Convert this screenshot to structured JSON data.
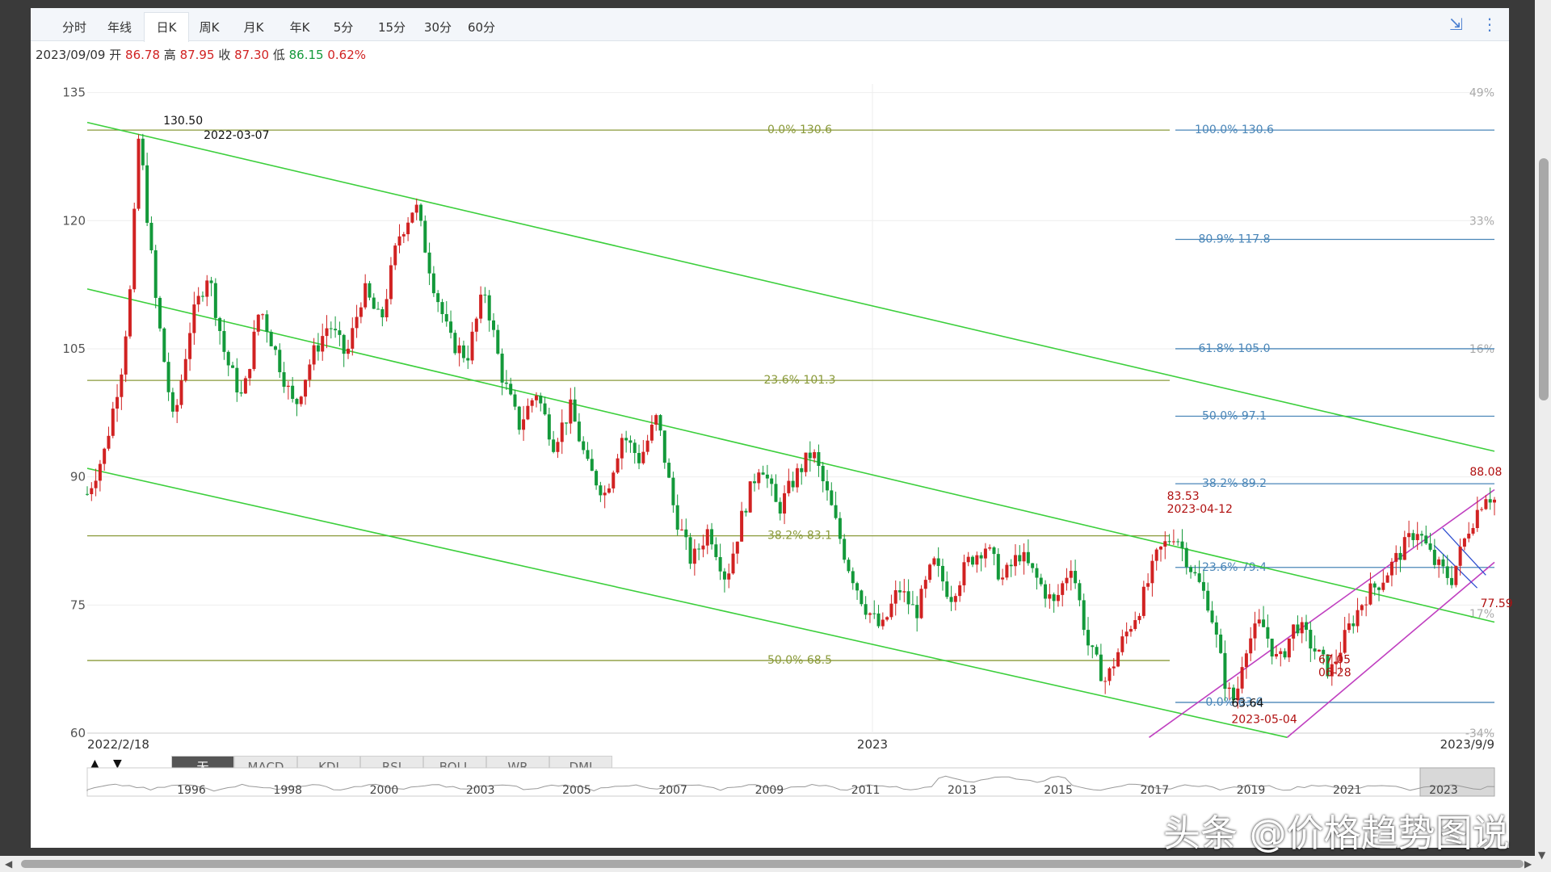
{
  "tabs": [
    {
      "label": "分时"
    },
    {
      "label": "年线"
    },
    {
      "label": "日K",
      "active": true
    },
    {
      "label": "周K"
    },
    {
      "label": "月K"
    },
    {
      "label": "年K"
    },
    {
      "label": "5分"
    },
    {
      "label": "15分"
    },
    {
      "label": "30分"
    },
    {
      "label": "60分"
    }
  ],
  "tools": {
    "collapse_icon": "compress-icon",
    "more_icon": "more-vertical-icon"
  },
  "info": {
    "date": "2023/09/09",
    "open_label": "开",
    "open": "86.78",
    "high_label": "高",
    "high": "87.95",
    "close_label": "收",
    "close": "87.30",
    "low_label": "低",
    "low": "86.15",
    "change": "0.62%"
  },
  "indicators": [
    {
      "label": "无",
      "active": true
    },
    {
      "label": "MACD"
    },
    {
      "label": "KDJ"
    },
    {
      "label": "RSI"
    },
    {
      "label": "BOLL"
    },
    {
      "label": "WR"
    },
    {
      "label": "DMI"
    }
  ],
  "nav": {
    "up": "▲",
    "down": "▼"
  },
  "watermark": "头条 @价格趋势图说",
  "chart_data": {
    "type": "candlestick",
    "x_start": "2022/2/18",
    "x_mid": "2023",
    "x_end": "2023/9/9",
    "y_ticks": [
      135,
      120,
      105,
      90,
      75,
      60
    ],
    "ylim": [
      60,
      136
    ],
    "right_pct_ticks": [
      {
        "label": "49%",
        "y": 135
      },
      {
        "label": "33%",
        "y": 120
      },
      {
        "label": "16%",
        "y": 105
      },
      {
        "label": "17%",
        "y": 74
      },
      {
        "label": "-34%",
        "y": 60
      }
    ],
    "price_path": [
      [
        0,
        88
      ],
      [
        2,
        93
      ],
      [
        4,
        103
      ],
      [
        5,
        112
      ],
      [
        6,
        130.5
      ],
      [
        7,
        120
      ],
      [
        8,
        110
      ],
      [
        10,
        96
      ],
      [
        12,
        108
      ],
      [
        14,
        114
      ],
      [
        16,
        104
      ],
      [
        18,
        99
      ],
      [
        20,
        110
      ],
      [
        22,
        104
      ],
      [
        24,
        98
      ],
      [
        26,
        104
      ],
      [
        28,
        108
      ],
      [
        30,
        104
      ],
      [
        32,
        112
      ],
      [
        34,
        108
      ],
      [
        36,
        118
      ],
      [
        38,
        122
      ],
      [
        40,
        113
      ],
      [
        42,
        106
      ],
      [
        44,
        104
      ],
      [
        46,
        112
      ],
      [
        48,
        102
      ],
      [
        50,
        96
      ],
      [
        52,
        100
      ],
      [
        54,
        94
      ],
      [
        56,
        98
      ],
      [
        58,
        91
      ],
      [
        60,
        88
      ],
      [
        62,
        95
      ],
      [
        64,
        92
      ],
      [
        66,
        97
      ],
      [
        68,
        86
      ],
      [
        70,
        80
      ],
      [
        72,
        84
      ],
      [
        74,
        78
      ],
      [
        76,
        86
      ],
      [
        78,
        92
      ],
      [
        80,
        86
      ],
      [
        82,
        90
      ],
      [
        84,
        93
      ],
      [
        86,
        87
      ],
      [
        88,
        80
      ],
      [
        90,
        75
      ],
      [
        92,
        72
      ],
      [
        94,
        77
      ],
      [
        96,
        74
      ],
      [
        98,
        80
      ],
      [
        100,
        76
      ],
      [
        102,
        80
      ],
      [
        104,
        82
      ],
      [
        106,
        78
      ],
      [
        108,
        81
      ],
      [
        110,
        78
      ],
      [
        112,
        75
      ],
      [
        114,
        80
      ],
      [
        116,
        70
      ],
      [
        118,
        66
      ],
      [
        120,
        71
      ],
      [
        122,
        75
      ],
      [
        124,
        81
      ],
      [
        126,
        83.53
      ],
      [
        128,
        79
      ],
      [
        130,
        75
      ],
      [
        132,
        65
      ],
      [
        133,
        63.64
      ],
      [
        134,
        70
      ],
      [
        136,
        73
      ],
      [
        138,
        68
      ],
      [
        140,
        73
      ],
      [
        142,
        70
      ],
      [
        144,
        67.05
      ],
      [
        146,
        72
      ],
      [
        148,
        76
      ],
      [
        150,
        78
      ],
      [
        152,
        81
      ],
      [
        154,
        84
      ],
      [
        156,
        80
      ],
      [
        158,
        78
      ],
      [
        160,
        84
      ],
      [
        162,
        88.08
      ],
      [
        163,
        87.3
      ]
    ],
    "annotations": [
      {
        "text": "130.50",
        "sub": "2022-03-07"
      },
      {
        "text": "83.53",
        "sub": "2023-04-12"
      },
      {
        "text": "63.64",
        "sub": "2023-05-04"
      },
      {
        "text": "67.05",
        "sub": "06-28"
      },
      {
        "text": "88.08"
      },
      {
        "text": "77.59"
      }
    ],
    "fib_left": [
      {
        "label": "0.0% 130.6",
        "y": 130.6
      },
      {
        "label": "23.6% 101.3",
        "y": 101.3
      },
      {
        "label": "38.2% 83.1",
        "y": 83.1
      },
      {
        "label": "50.0% 68.5",
        "y": 68.5
      }
    ],
    "fib_right": [
      {
        "label": "100.0% 130.6",
        "y": 130.6
      },
      {
        "label": "80.9% 117.8",
        "y": 117.8
      },
      {
        "label": "61.8% 105.0",
        "y": 105.0
      },
      {
        "label": "50.0% 97.1",
        "y": 97.1
      },
      {
        "label": "38.2% 89.2",
        "y": 89.2
      },
      {
        "label": "23.6% 79.4",
        "y": 79.4
      },
      {
        "label": "0.0% 63.6",
        "y": 63.6
      }
    ],
    "overview_years": [
      "1996",
      "1998",
      "2000",
      "2003",
      "2005",
      "2007",
      "2009",
      "2011",
      "2013",
      "2015",
      "2017",
      "2019",
      "2021",
      "2023"
    ],
    "colors": {
      "up": "#d12222",
      "down": "#13993a",
      "fib_left": "#8a9a3a",
      "fib_right": "#4a86b8",
      "channel": "#3ccf3c",
      "channel2": "#c040c0",
      "wedge": "#3050d0"
    }
  }
}
